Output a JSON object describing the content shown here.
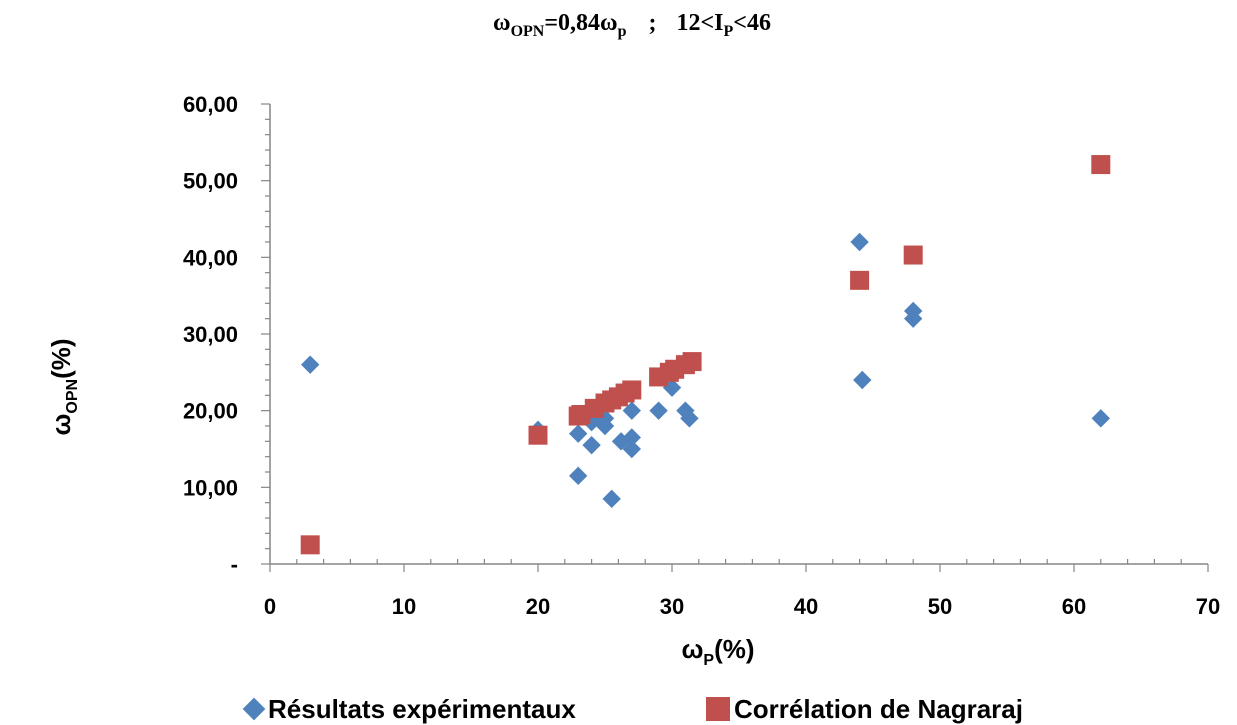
{
  "chart_data": {
    "type": "scatter",
    "title": {
      "omega": "ω",
      "omega_sub": "OPN",
      "formula_mid": "=0,84ω",
      "omega_p_sub": "p",
      "separator": ";",
      "range_pre": "12<I",
      "range_sub": "P",
      "range_post": "<46"
    },
    "xlabel": {
      "main": "ω",
      "sub": "P",
      "unit": "(%)"
    },
    "ylabel": {
      "main": "ω",
      "sub": "OPN",
      "unit": "(%)"
    },
    "xlim": [
      0,
      70
    ],
    "ylim": [
      0,
      60
    ],
    "x_ticks": [
      "0",
      "10",
      "20",
      "30",
      "40",
      "50",
      "60",
      "70"
    ],
    "y_ticks": [
      "-",
      "10,00",
      "20,00",
      "30,00",
      "40,00",
      "50,00",
      "60,00"
    ],
    "legend_position": "bottom",
    "series": [
      {
        "name": "Résultats expérimentaux",
        "marker": "diamond",
        "color": "#4F81BD",
        "points": [
          [
            3,
            26
          ],
          [
            20,
            17.5
          ],
          [
            23,
            17
          ],
          [
            23,
            11.5
          ],
          [
            24,
            15.5
          ],
          [
            24,
            18.5
          ],
          [
            25,
            18
          ],
          [
            25,
            19
          ],
          [
            25.5,
            8.5
          ],
          [
            26.2,
            16
          ],
          [
            27,
            15
          ],
          [
            27,
            16.5
          ],
          [
            27,
            20
          ],
          [
            29,
            20
          ],
          [
            30,
            23
          ],
          [
            31,
            20
          ],
          [
            31.3,
            19
          ],
          [
            44,
            42
          ],
          [
            44.2,
            24
          ],
          [
            48,
            33
          ],
          [
            48,
            32
          ],
          [
            62,
            19
          ]
        ]
      },
      {
        "name": "Corrélation de Nagraraj",
        "marker": "square",
        "color": "#C0504D",
        "points": [
          [
            3,
            2.5
          ],
          [
            20,
            16.8
          ],
          [
            23,
            19.3
          ],
          [
            23.2,
            19.5
          ],
          [
            24.2,
            20.3
          ],
          [
            25,
            21
          ],
          [
            25.5,
            21.4
          ],
          [
            26,
            21.8
          ],
          [
            26.5,
            22.3
          ],
          [
            27,
            22.7
          ],
          [
            29,
            24.4
          ],
          [
            29.8,
            25
          ],
          [
            30.2,
            25.4
          ],
          [
            31,
            26
          ],
          [
            31.5,
            26.4
          ],
          [
            44,
            37
          ],
          [
            48,
            40.3
          ],
          [
            62,
            52.1
          ]
        ]
      }
    ]
  }
}
